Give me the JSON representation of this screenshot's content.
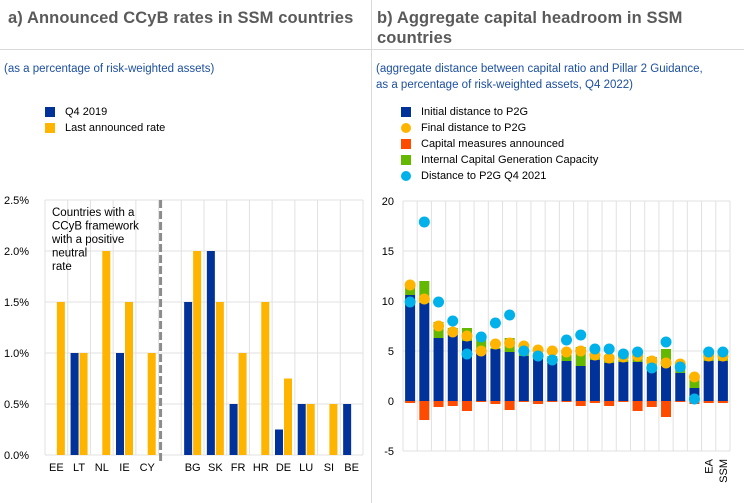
{
  "colors": {
    "blue": "#003299",
    "yellow": "#FFB400",
    "orange_red": "#FF4B00",
    "green": "#65B800",
    "cyan": "#00B1EA",
    "title_gray": "#5a5a5a",
    "subtitle_blue": "#1c4f9e",
    "grid": "#e1e1e1",
    "separator": "#8c8c8c"
  },
  "panel_a": {
    "title": "a) Announced CCyB rates in SSM countries",
    "subtitle": "(as a percentage of risk-weighted assets)",
    "legend": [
      {
        "label": "Q4 2019",
        "color": "#003299",
        "shape": "square"
      },
      {
        "label": "Last announced rate",
        "color": "#FFB400",
        "shape": "square"
      }
    ]
  },
  "panel_b": {
    "title_line1": "b) Aggregate capital headroom in SSM",
    "title_line2": "countries",
    "subtitle_line1": "(aggregate distance between capital ratio and Pillar 2 Guidance,",
    "subtitle_line2": "as a percentage of risk-weighted assets, Q4 2022)",
    "legend": [
      {
        "label": "Initial distance to P2G",
        "color": "#003299",
        "shape": "square"
      },
      {
        "label": "Final distance to P2G",
        "color": "#FFB400",
        "shape": "dot"
      },
      {
        "label": "Capital measures announced",
        "color": "#FF4B00",
        "shape": "square"
      },
      {
        "label": "Internal Capital Generation Capacity",
        "color": "#65B800",
        "shape": "square"
      },
      {
        "label": "Distance to P2G Q4 2021",
        "color": "#00B1EA",
        "shape": "dot"
      }
    ]
  },
  "chart_data": [
    {
      "type": "bar",
      "title": "a) Announced CCyB rates in SSM countries",
      "subtitle": "(as a percentage of risk-weighted assets)",
      "categories": [
        "EE",
        "LT",
        "NL",
        "IE",
        "CY",
        "",
        "BG",
        "SK",
        "FR",
        "HR",
        "DE",
        "LU",
        "SI",
        "BE"
      ],
      "series": [
        {
          "name": "Q4 2019",
          "color": "#003299",
          "values": [
            0,
            1.0,
            0,
            1.0,
            0,
            null,
            1.5,
            2.0,
            0.5,
            0,
            0.25,
            0.5,
            0,
            0.5
          ]
        },
        {
          "name": "Last announced rate",
          "color": "#FFB400",
          "values": [
            1.5,
            1.0,
            2.0,
            1.5,
            1.0,
            null,
            2.0,
            1.5,
            1.0,
            1.5,
            0.75,
            0.5,
            0.5,
            0
          ]
        }
      ],
      "ylim": [
        0,
        2.5
      ],
      "yticks": [
        "0.0%",
        "0.5%",
        "1.0%",
        "1.5%",
        "2.0%",
        "2.5%"
      ],
      "ytick_values": [
        0,
        0.5,
        1.0,
        1.5,
        2.0,
        2.5
      ],
      "grid": true,
      "legend": "top-left",
      "separator_after_category": "CY",
      "annotation": [
        "Countries with a",
        "CCyB framework",
        "with a positive",
        "neutral",
        "rate"
      ]
    },
    {
      "type": "bar",
      "stacked": true,
      "title": "b) Aggregate capital headroom in SSM countries",
      "subtitle": "(aggregate distance between capital ratio and Pillar 2 Guidance, as a percentage of risk-weighted assets, Q4 2022)",
      "categories": [
        "",
        "",
        "",
        "",
        "",
        "",
        "",
        "",
        "",
        "",
        "",
        "",
        "",
        "",
        "",
        "",
        "",
        "",
        "",
        "",
        "",
        "EA",
        "SSM"
      ],
      "series": [
        {
          "name": "Initial distance to P2G",
          "kind": "bar",
          "color": "#003299",
          "values": [
            10.6,
            9.8,
            6.3,
            6.6,
            6.0,
            5.0,
            5.2,
            4.9,
            4.5,
            4.2,
            3.8,
            4.0,
            3.5,
            4.1,
            3.8,
            3.9,
            3.9,
            3.0,
            3.5,
            2.8,
            1.3,
            4.0,
            4.0
          ]
        },
        {
          "name": "Internal Capital Generation Capacity",
          "kind": "bar",
          "color": "#65B800",
          "values": [
            0.9,
            2.2,
            1.6,
            0.7,
            1.3,
            1.3,
            0.1,
            1.4,
            0.7,
            0.6,
            0.7,
            0.6,
            1.9,
            0.3,
            0.8,
            0.2,
            1.0,
            1.4,
            1.7,
            0.9,
            0.9,
            0.6,
            0.6
          ]
        },
        {
          "name": "Capital measures announced",
          "kind": "bar",
          "color": "#FF4B00",
          "values": [
            -0.2,
            -1.9,
            -0.6,
            -0.5,
            -1.0,
            -0.1,
            -0.3,
            -0.9,
            -0.1,
            -0.3,
            -0.1,
            -0.1,
            -0.5,
            -0.2,
            -0.5,
            -0.1,
            -1.0,
            -0.6,
            -1.6,
            -0.1,
            -0.3,
            -0.2,
            -0.2
          ]
        },
        {
          "name": "Final distance to P2G",
          "kind": "dot",
          "color": "#FFB400",
          "values": [
            11.6,
            10.2,
            7.5,
            6.9,
            6.5,
            5.0,
            5.7,
            5.8,
            5.5,
            5.1,
            5.0,
            4.9,
            5.0,
            4.6,
            4.3,
            4.4,
            4.5,
            4.0,
            3.8,
            3.7,
            2.4,
            4.5,
            4.5
          ]
        },
        {
          "name": "Distance to P2G Q4 2021",
          "kind": "dot",
          "color": "#00B1EA",
          "values": [
            9.9,
            17.9,
            9.9,
            8.0,
            4.7,
            6.4,
            7.8,
            8.6,
            5.0,
            4.5,
            4.1,
            6.1,
            6.6,
            5.2,
            5.2,
            4.7,
            4.9,
            3.3,
            5.9,
            3.4,
            0.2,
            4.9,
            4.9
          ]
        }
      ],
      "ylim": [
        -5,
        20
      ],
      "yticks": [
        "-5",
        "0",
        "5",
        "10",
        "15",
        "20"
      ],
      "ytick_values": [
        -5,
        0,
        5,
        10,
        15,
        20
      ],
      "grid": true,
      "legend": "top-left"
    }
  ]
}
